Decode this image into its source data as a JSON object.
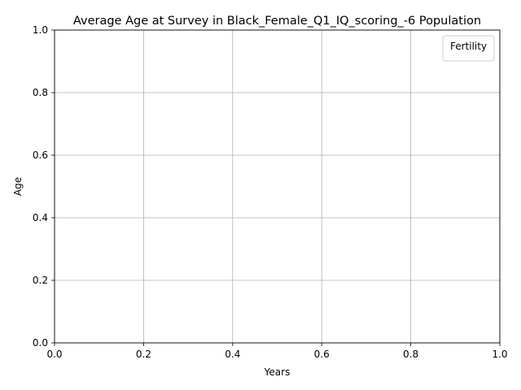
{
  "chart_data": {
    "type": "line",
    "title": "Average Age at Survey in Black_Female_Q1_IQ_scoring_-6 Population",
    "xlabel": "Years",
    "ylabel": "Age",
    "xlim": [
      0.0,
      1.0
    ],
    "ylim": [
      0.0,
      1.0
    ],
    "xticks": [
      "0.0",
      "0.2",
      "0.4",
      "0.6",
      "0.8",
      "1.0"
    ],
    "yticks": [
      "0.0",
      "0.2",
      "0.4",
      "0.6",
      "0.8",
      "1.0"
    ],
    "grid": true,
    "legend": {
      "title": "Fertility",
      "placement": "top-right",
      "entries": []
    },
    "series": []
  }
}
